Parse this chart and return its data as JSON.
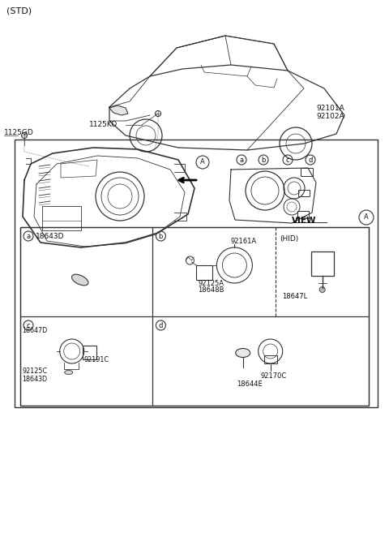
{
  "bg_color": "#ffffff",
  "line_color": "#333333",
  "text_color": "#111111",
  "fig_width": 4.8,
  "fig_height": 6.57,
  "labels": {
    "std": "(STD)",
    "view_a": "VIEW",
    "part_1125KO": "1125KO",
    "part_1125GD": "1125GD",
    "part_92101A": "92101A",
    "part_92102A": "92102A",
    "cell_a_label": "18643D",
    "part_92161A": "92161A",
    "part_92125A": "92125A",
    "part_18648B": "18648B",
    "part_18647L": "18647L",
    "hid": "(HID)",
    "part_18647D": "18647D",
    "part_92191C": "92191C",
    "part_92125C": "92125C",
    "part_18643D_c": "18643D",
    "part_92170C": "92170C",
    "part_18644E": "18644E"
  }
}
